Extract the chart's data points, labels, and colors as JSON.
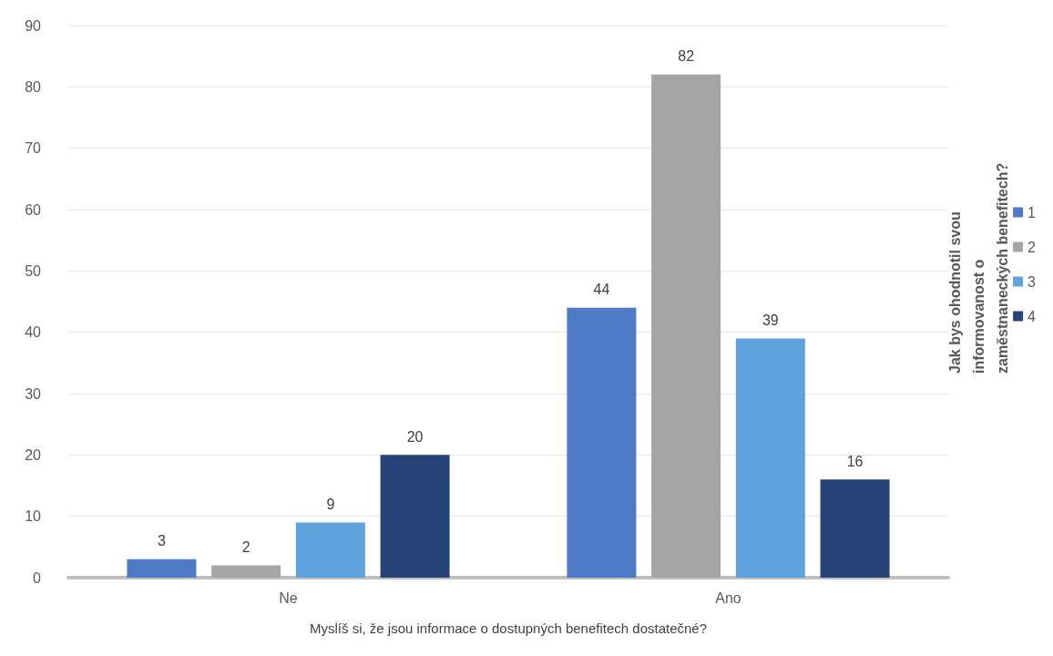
{
  "chart_data": {
    "type": "bar",
    "xlabel": "Myslíš si, že jsou informace o dostupných benefitech dostatečné?",
    "legend_title": "Jak bys ohodnotil svou informovanost o zaměstnaneckých benefitech?",
    "categories": [
      "Ne",
      "Ano"
    ],
    "series": [
      {
        "name": "1",
        "color": "#4f7ac7",
        "values": [
          3,
          44
        ]
      },
      {
        "name": "2",
        "color": "#a5a5a5",
        "values": [
          2,
          82
        ]
      },
      {
        "name": "3",
        "color": "#5ea3dc",
        "values": [
          9,
          39
        ]
      },
      {
        "name": "4",
        "color": "#264478",
        "values": [
          20,
          16
        ]
      }
    ],
    "ylim": [
      0,
      90
    ],
    "yticks": [
      0,
      10,
      20,
      30,
      40,
      50,
      60,
      70,
      80,
      90
    ],
    "grid": "y",
    "legend": "right",
    "data_labels": true
  }
}
